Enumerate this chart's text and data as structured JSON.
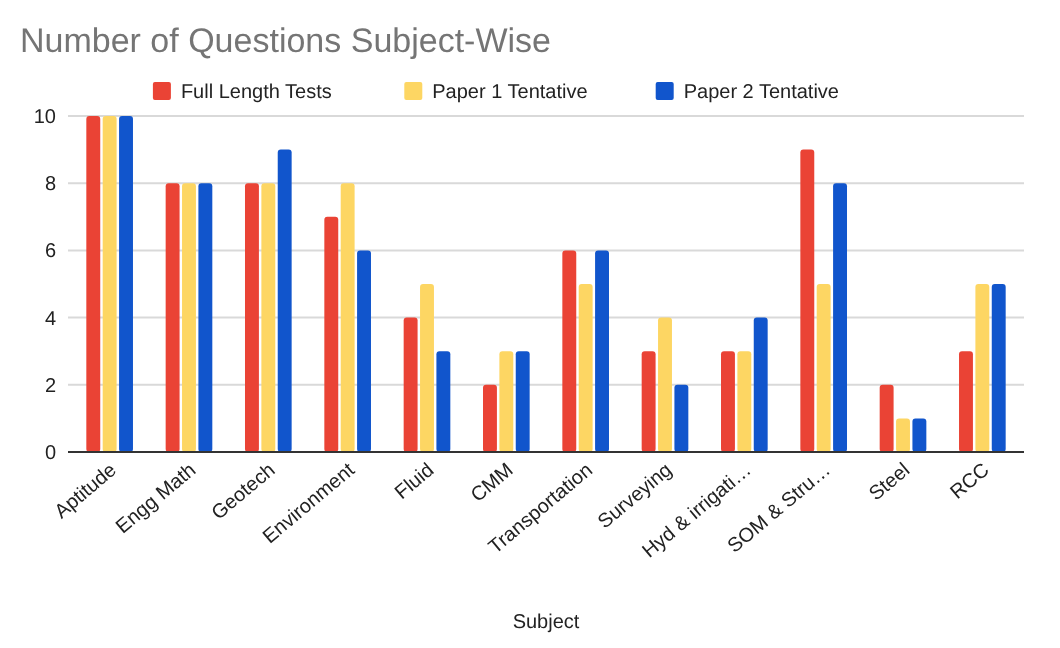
{
  "chart_data": {
    "type": "bar",
    "title": "Number of Questions Subject-Wise",
    "xlabel": "Subject",
    "categories": [
      "Aptitude",
      "Engg Math",
      "Geotech",
      "Environment",
      "Fluid",
      "CMM",
      "Transportation",
      "Surveying",
      "Hyd & irrigati…",
      "SOM & Stru…",
      "Steel",
      "RCC"
    ],
    "series": [
      {
        "name": "Full Length Tests",
        "color": "#ea4335",
        "values": [
          10,
          8,
          8,
          7,
          4,
          2,
          6,
          3,
          3,
          9,
          2,
          3
        ]
      },
      {
        "name": "Paper 1 Tentative",
        "color": "#fdd663",
        "values": [
          10,
          8,
          8,
          8,
          5,
          3,
          5,
          4,
          3,
          5,
          1,
          5
        ]
      },
      {
        "name": "Paper 2 Tentative",
        "color": "#1155cc",
        "values": [
          10,
          8,
          9,
          6,
          3,
          3,
          6,
          2,
          4,
          8,
          1,
          5
        ]
      }
    ],
    "ylim": [
      0,
      10
    ],
    "yticks": [
      0,
      2,
      4,
      6,
      8,
      10
    ],
    "grid": "y",
    "legend": "top"
  }
}
